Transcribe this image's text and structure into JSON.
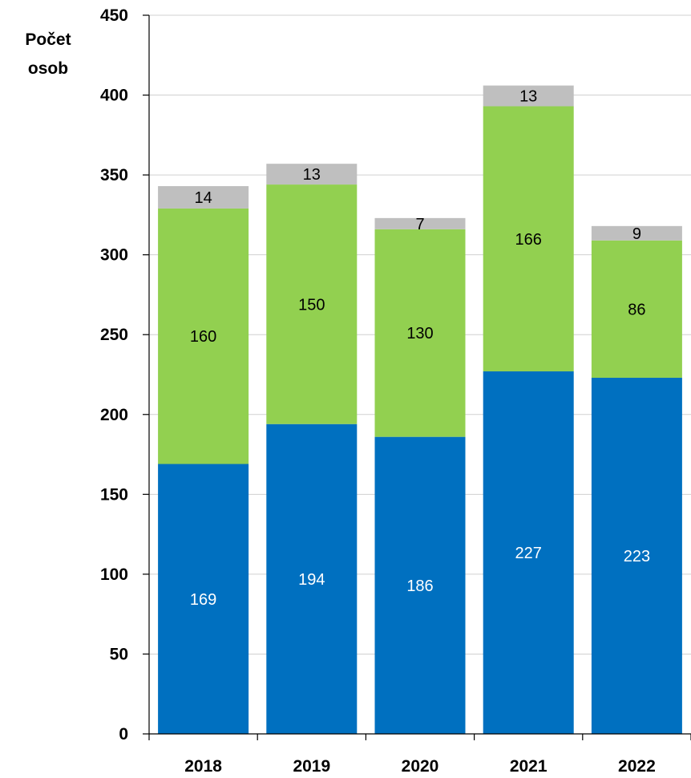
{
  "chart_data": {
    "type": "bar",
    "stacked": true,
    "categories": [
      "2018",
      "2019",
      "2020",
      "2021",
      "2022"
    ],
    "series": [
      {
        "values": [
          169,
          194,
          186,
          227,
          223
        ],
        "color": "#0070C0",
        "label_color": "#ffffff"
      },
      {
        "values": [
          160,
          150,
          130,
          166,
          86
        ],
        "color": "#92D050",
        "label_color": "#000000"
      },
      {
        "values": [
          14,
          13,
          7,
          13,
          9
        ],
        "color": "#BFBFBF",
        "label_color": "#000000"
      }
    ],
    "ylabel_line1": "Počet",
    "ylabel_line2": "osob",
    "ylim": [
      0,
      450
    ],
    "yticks": [
      0,
      50,
      100,
      150,
      200,
      250,
      300,
      350,
      400,
      450
    ],
    "grid": true,
    "legend": "none"
  }
}
